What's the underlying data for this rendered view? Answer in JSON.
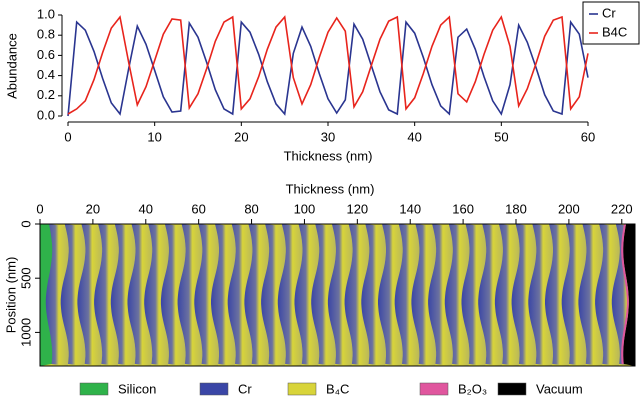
{
  "chart_data": [
    {
      "type": "line",
      "xlabel": "Thickness (nm)",
      "ylabel": "Abundance",
      "x": [
        0,
        1,
        2,
        3,
        4,
        5,
        6,
        7,
        8,
        9,
        10,
        11,
        12,
        13,
        14,
        15,
        16,
        17,
        18,
        19,
        20,
        21,
        22,
        23,
        24,
        25,
        26,
        27,
        28,
        29,
        30,
        31,
        32,
        33,
        34,
        35,
        36,
        37,
        38,
        39,
        40,
        41,
        42,
        43,
        44,
        45,
        46,
        47,
        48,
        49,
        50,
        51,
        52,
        53,
        54,
        55,
        56,
        57,
        58,
        59,
        60
      ],
      "series": [
        {
          "name": "Cr",
          "color": "#2a3590",
          "values": [
            0,
            0.93,
            0.85,
            0.64,
            0.37,
            0.13,
            0.02,
            0.47,
            0.89,
            0.71,
            0.45,
            0.19,
            0.04,
            0.05,
            0.92,
            0.78,
            0.53,
            0.26,
            0.07,
            0.02,
            0.93,
            0.83,
            0.61,
            0.34,
            0.12,
            0.02,
            0.62,
            0.88,
            0.69,
            0.42,
            0.17,
            0.03,
            0.16,
            0.91,
            0.76,
            0.5,
            0.24,
            0.06,
            0.02,
            0.93,
            0.82,
            0.58,
            0.31,
            0.1,
            0.02,
            0.78,
            0.86,
            0.66,
            0.39,
            0.15,
            0.02,
            0.31,
            0.9,
            0.73,
            0.48,
            0.21,
            0.05,
            0.02,
            0.93,
            0.81,
            0.38
          ]
        },
        {
          "name": "B4C",
          "color": "#e8241c",
          "values": [
            0.02,
            0.07,
            0.15,
            0.36,
            0.63,
            0.87,
            0.98,
            0.53,
            0.11,
            0.29,
            0.55,
            0.81,
            0.96,
            0.95,
            0.08,
            0.22,
            0.47,
            0.74,
            0.93,
            0.98,
            0.07,
            0.17,
            0.39,
            0.66,
            0.88,
            0.98,
            0.38,
            0.12,
            0.31,
            0.58,
            0.83,
            0.97,
            0.84,
            0.09,
            0.24,
            0.5,
            0.76,
            0.94,
            0.98,
            0.07,
            0.18,
            0.42,
            0.69,
            0.9,
            0.98,
            0.22,
            0.14,
            0.34,
            0.61,
            0.85,
            0.98,
            0.69,
            0.1,
            0.27,
            0.52,
            0.79,
            0.95,
            0.98,
            0.07,
            0.19,
            0.62
          ]
        }
      ],
      "xlim": [
        0,
        60
      ],
      "xticks": [
        0,
        10,
        20,
        30,
        40,
        50,
        60
      ],
      "ylim": [
        0,
        1
      ],
      "yticks": [
        {
          "value": 0,
          "label": "0.0"
        },
        0.2,
        0.4,
        0.6,
        0.8,
        {
          "value": 1,
          "label": "1.0"
        }
      ],
      "legend": "top-right"
    },
    {
      "type": "map",
      "xlabel": "Thickness (nm)",
      "ylabel": "Position (nm)",
      "xlim": [
        0,
        225
      ],
      "xticks": [
        0,
        20,
        40,
        60,
        80,
        100,
        120,
        140,
        160,
        180,
        200,
        220
      ],
      "ylim": [
        0,
        1310
      ],
      "yticks": [
        0,
        500,
        1000
      ],
      "series": [
        {
          "name": "Silicon",
          "color": "#2fb24a"
        },
        {
          "name": "Cr",
          "color": "#3a46a6"
        },
        {
          "name": "B₄C",
          "color": "#d8d43a"
        },
        {
          "name": "B₂O₃",
          "color": "#e0569e"
        },
        {
          "name": "Vacuum",
          "color": "#000000"
        }
      ],
      "legend": "bottom"
    }
  ]
}
